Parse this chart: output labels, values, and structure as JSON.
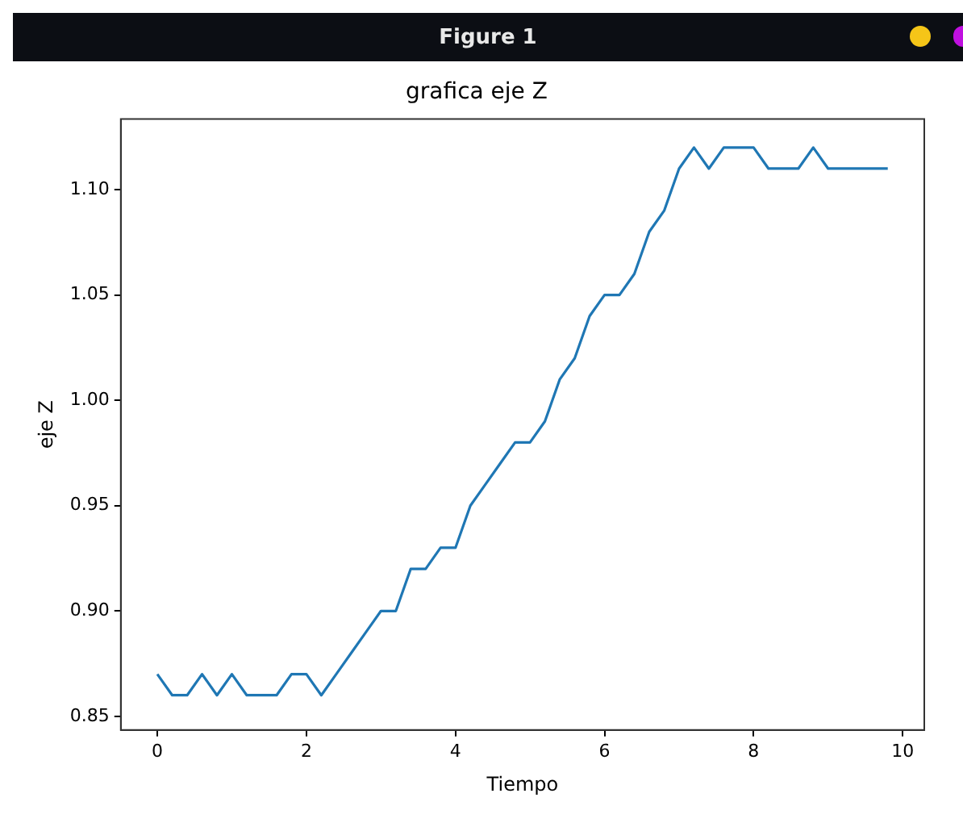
{
  "chart_data": {
    "type": "line",
    "title": "grafica eje Z",
    "xlabel": "Tiempo",
    "ylabel": "eje Z",
    "annotations": [
      "Figure 1"
    ],
    "x": [
      0,
      0.2,
      0.4,
      0.6,
      0.8,
      1.0,
      1.2,
      1.4,
      1.6,
      1.8,
      2.0,
      2.2,
      2.4,
      2.6,
      2.8,
      3.0,
      3.2,
      3.4,
      3.6,
      3.8,
      4.0,
      4.2,
      4.4,
      4.6,
      4.8,
      5.0,
      5.2,
      5.4,
      5.6,
      5.8,
      6.0,
      6.2,
      6.4,
      6.6,
      6.8,
      7.0,
      7.2,
      7.4,
      7.6,
      7.8,
      8.0,
      8.2,
      8.4,
      8.6,
      8.8,
      9.0,
      9.2,
      9.4,
      9.6,
      9.8
    ],
    "series": [
      {
        "color": "#1f77b4",
        "values": [
          0.87,
          0.86,
          0.86,
          0.87,
          0.86,
          0.87,
          0.86,
          0.86,
          0.86,
          0.87,
          0.87,
          0.86,
          0.87,
          0.88,
          0.89,
          0.9,
          0.9,
          0.92,
          0.92,
          0.93,
          0.93,
          0.95,
          0.96,
          0.97,
          0.98,
          0.98,
          0.99,
          1.01,
          1.02,
          1.04,
          1.05,
          1.05,
          1.06,
          1.08,
          1.09,
          1.11,
          1.12,
          1.11,
          1.12,
          1.12,
          1.12,
          1.11,
          1.11,
          1.11,
          1.12,
          1.11,
          1.11,
          1.11,
          1.11,
          1.11
        ]
      }
    ],
    "xlim": [
      -0.49,
      10.29
    ],
    "xticks": [
      0,
      2,
      4,
      6,
      8,
      10
    ],
    "ylim": [
      0.8435,
      1.1335
    ],
    "yticks": [
      {
        "value": 0.85,
        "label": "0.85"
      },
      {
        "value": 0.9,
        "label": "0.90"
      },
      {
        "value": 0.95,
        "label": "0.95"
      },
      {
        "value": 1.0,
        "label": "1.00"
      },
      {
        "value": 1.05,
        "label": "1.05"
      },
      {
        "value": 1.1,
        "label": "1.10"
      }
    ],
    "grid": false,
    "legend": false,
    "marker": "none",
    "line_style": "solid"
  }
}
